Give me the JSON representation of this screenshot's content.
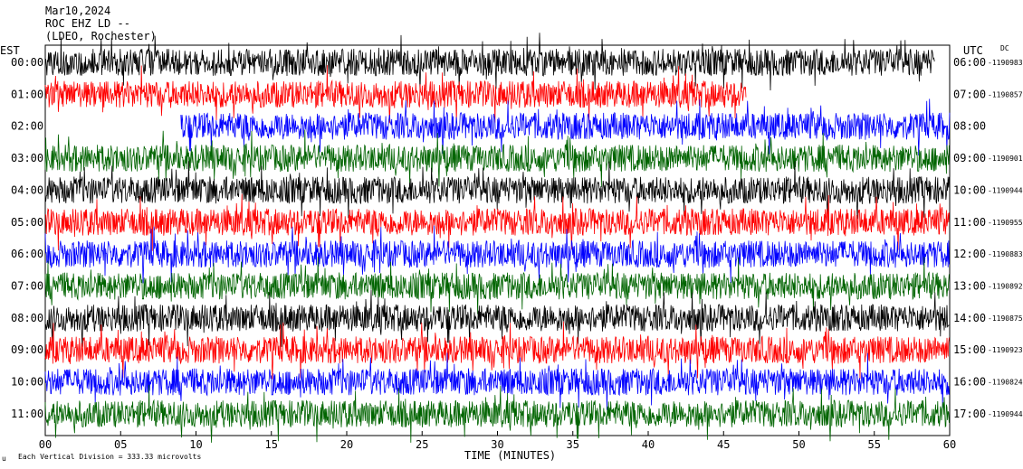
{
  "header": {
    "date": "Mar10,2024",
    "station": "ROC EHZ LD --",
    "network": "(LDEO, Rochester)"
  },
  "left_axis_title": "EST",
  "right_axis_title": "UTC",
  "dc_label": "DC",
  "footer": {
    "scale_note": "Each Vertical Division =  333.33 microvolts",
    "scale_mark": "u"
  },
  "chart_data": {
    "type": "line",
    "title": "",
    "xlabel": "TIME (MINUTES)",
    "ylabel": "",
    "x_ticks": [
      "00",
      "05",
      "10",
      "15",
      "20",
      "25",
      "30",
      "35",
      "40",
      "45",
      "50",
      "55",
      "60"
    ],
    "xlim": [
      0,
      60
    ],
    "trace_colors": [
      "#000000",
      "#ff0000",
      "#0000ff",
      "#006400"
    ],
    "rows": [
      {
        "est": "00:00",
        "utc": "06:00",
        "dc": "-1190983",
        "color": "#000000",
        "start_min": 0,
        "end_min": 59
      },
      {
        "est": "01:00",
        "utc": "07:00",
        "dc": "-1190857",
        "color": "#ff0000",
        "start_min": 0,
        "end_min": 46.5
      },
      {
        "est": "02:00",
        "utc": "08:00",
        "dc": "",
        "color": "#0000ff",
        "start_min": 9,
        "end_min": 60
      },
      {
        "est": "03:00",
        "utc": "09:00",
        "dc": "-1190901",
        "color": "#006400",
        "start_min": 0,
        "end_min": 60
      },
      {
        "est": "04:00",
        "utc": "10:00",
        "dc": "-1190944",
        "color": "#000000",
        "start_min": 0,
        "end_min": 60
      },
      {
        "est": "05:00",
        "utc": "11:00",
        "dc": "-1190955",
        "color": "#ff0000",
        "start_min": 0,
        "end_min": 60
      },
      {
        "est": "06:00",
        "utc": "12:00",
        "dc": "-1190883",
        "color": "#0000ff",
        "start_min": 0,
        "end_min": 60
      },
      {
        "est": "07:00",
        "utc": "13:00",
        "dc": "-1190892",
        "color": "#006400",
        "start_min": 0,
        "end_min": 60
      },
      {
        "est": "08:00",
        "utc": "14:00",
        "dc": "-1190875",
        "color": "#000000",
        "start_min": 0,
        "end_min": 60
      },
      {
        "est": "09:00",
        "utc": "15:00",
        "dc": "-1190923",
        "color": "#ff0000",
        "start_min": 0,
        "end_min": 60
      },
      {
        "est": "10:00",
        "utc": "16:00",
        "dc": "-1190824",
        "color": "#0000ff",
        "start_min": 0,
        "end_min": 60
      },
      {
        "est": "11:00",
        "utc": "17:00",
        "dc": "-1190944",
        "color": "#006400",
        "start_min": 0,
        "end_min": 60
      }
    ],
    "grid": false
  }
}
